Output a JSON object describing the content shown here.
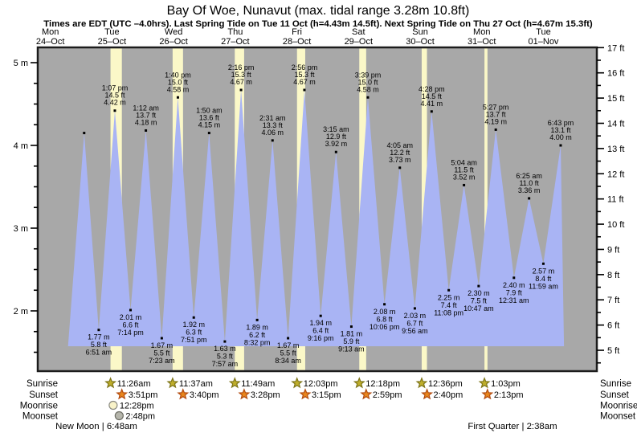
{
  "header": {
    "title": "Bay Of Woe, Nunavut (max. tidal range 3.28m 10.8ft)",
    "subtitle": "Times are EDT (UTC –4.0hrs). Last Spring Tide on Tue 11 Oct (h=4.43m 14.5ft). Next Spring Tide on Thu 27 Oct (h=4.67m 15.3ft)"
  },
  "days": [
    {
      "weekday": "Mon",
      "date": "24–Oct"
    },
    {
      "weekday": "Tue",
      "date": "25–Oct"
    },
    {
      "weekday": "Wed",
      "date": "26–Oct"
    },
    {
      "weekday": "Thu",
      "date": "27–Oct"
    },
    {
      "weekday": "Fri",
      "date": "28–Oct"
    },
    {
      "weekday": "Sat",
      "date": "29–Oct"
    },
    {
      "weekday": "Sun",
      "date": "30–Oct"
    },
    {
      "weekday": "Mon",
      "date": "31–Oct"
    },
    {
      "weekday": "Tue",
      "date": "01–Nov"
    }
  ],
  "chart_data": {
    "type": "area",
    "ylabel_left_unit": "m",
    "ylabel_right_unit": "ft",
    "y_axis_left": {
      "major_ticks_m": [
        2,
        3,
        4,
        5
      ],
      "minor_step_m": 0.25,
      "suffix": " m",
      "range_m": [
        1.5,
        5.17
      ]
    },
    "y_axis_right": {
      "major_ticks_ft": [
        5,
        6,
        7,
        8,
        9,
        10,
        11,
        12,
        13,
        14,
        15,
        16,
        17
      ],
      "minor_step_ft": 0.5,
      "suffix": " ft"
    },
    "curve_window": {
      "start_hour": 18.9,
      "end_hour": 212.0,
      "baseline_note": "blue fill clipped at ~1.57 m"
    },
    "tides": [
      {
        "day": 1,
        "kind": "high",
        "height_m": 4.15,
        "labeled": false,
        "time_est": "1:10 am"
      },
      {
        "day": 1,
        "kind": "low",
        "height_m": 1.77,
        "labeled": true,
        "label_m": "1.77 m",
        "label_ft": "5.8 ft",
        "label_time": "6:51 am"
      },
      {
        "day": 1,
        "kind": "high",
        "height_m": 4.42,
        "labeled": true,
        "label_m": "4.42 m",
        "label_ft": "14.5 ft",
        "label_time": "1:07 pm"
      },
      {
        "day": 1,
        "kind": "low",
        "height_m": 2.01,
        "labeled": true,
        "label_m": "2.01 m",
        "label_ft": "6.6 ft",
        "label_time": "7:14 pm"
      },
      {
        "day": 2,
        "kind": "high",
        "height_m": 4.18,
        "labeled": true,
        "label_m": "4.18 m",
        "label_ft": "13.7 ft",
        "label_time": "1:12 am"
      },
      {
        "day": 2,
        "kind": "low",
        "height_m": 1.67,
        "labeled": true,
        "label_m": "1.67 m",
        "label_ft": "5.5 ft",
        "label_time": "7:23 am"
      },
      {
        "day": 2,
        "kind": "high",
        "height_m": 4.58,
        "labeled": true,
        "label_m": "4.58 m",
        "label_ft": "15.0 ft",
        "label_time": "1:40 pm"
      },
      {
        "day": 2,
        "kind": "low",
        "height_m": 1.92,
        "labeled": true,
        "label_m": "1.92 m",
        "label_ft": "6.3 ft",
        "label_time": "7:51 pm"
      },
      {
        "day": 3,
        "kind": "high",
        "height_m": 4.15,
        "labeled": true,
        "label_m": "4.15 m",
        "label_ft": "13.6 ft",
        "label_time": "1:50 am"
      },
      {
        "day": 3,
        "kind": "low",
        "height_m": 1.63,
        "labeled": true,
        "label_m": "1.63 m",
        "label_ft": "5.3 ft",
        "label_time": "7:57 am"
      },
      {
        "day": 3,
        "kind": "high",
        "height_m": 4.67,
        "labeled": true,
        "label_m": "4.67 m",
        "label_ft": "15.3 ft",
        "label_time": "2:16 pm"
      },
      {
        "day": 3,
        "kind": "low",
        "height_m": 1.89,
        "labeled": true,
        "label_m": "1.89 m",
        "label_ft": "6.2 ft",
        "label_time": "8:32 pm"
      },
      {
        "day": 4,
        "kind": "high",
        "height_m": 4.06,
        "labeled": true,
        "label_m": "4.06 m",
        "label_ft": "13.3 ft",
        "label_time": "2:31 am"
      },
      {
        "day": 4,
        "kind": "low",
        "height_m": 1.67,
        "labeled": true,
        "label_m": "1.67 m",
        "label_ft": "5.5 ft",
        "label_time": "8:34 am"
      },
      {
        "day": 4,
        "kind": "high",
        "height_m": 4.67,
        "labeled": true,
        "label_m": "4.67 m",
        "label_ft": "15.3 ft",
        "label_time": "2:56 pm"
      },
      {
        "day": 4,
        "kind": "low",
        "height_m": 1.94,
        "labeled": true,
        "label_m": "1.94 m",
        "label_ft": "6.4 ft",
        "label_time": "9:16 pm"
      },
      {
        "day": 5,
        "kind": "high",
        "height_m": 3.92,
        "labeled": true,
        "label_m": "3.92 m",
        "label_ft": "12.9 ft",
        "label_time": "3:15 am"
      },
      {
        "day": 5,
        "kind": "low",
        "height_m": 1.81,
        "labeled": true,
        "label_m": "1.81 m",
        "label_ft": "5.9 ft",
        "label_time": "9:13 am"
      },
      {
        "day": 5,
        "kind": "high",
        "height_m": 4.58,
        "labeled": true,
        "label_m": "4.58 m",
        "label_ft": "15.0 ft",
        "label_time": "3:39 pm"
      },
      {
        "day": 5,
        "kind": "low",
        "height_m": 2.08,
        "labeled": true,
        "label_m": "2.08 m",
        "label_ft": "6.8 ft",
        "label_time": "10:06 pm"
      },
      {
        "day": 6,
        "kind": "high",
        "height_m": 3.73,
        "labeled": true,
        "label_m": "3.73 m",
        "label_ft": "12.2 ft",
        "label_time": "4:05 am"
      },
      {
        "day": 6,
        "kind": "low",
        "height_m": 2.03,
        "labeled": true,
        "label_m": "2.03 m",
        "label_ft": "6.7 ft",
        "label_time": "9:56 am"
      },
      {
        "day": 6,
        "kind": "high",
        "height_m": 4.41,
        "labeled": true,
        "label_m": "4.41 m",
        "label_ft": "14.5 ft",
        "label_time": "4:28 pm"
      },
      {
        "day": 6,
        "kind": "low",
        "height_m": 2.25,
        "labeled": true,
        "label_m": "2.25 m",
        "label_ft": "7.4 ft",
        "label_time": "11:08 pm"
      },
      {
        "day": 7,
        "kind": "high",
        "height_m": 3.52,
        "labeled": true,
        "label_m": "3.52 m",
        "label_ft": "11.5 ft",
        "label_time": "5:04 am"
      },
      {
        "day": 7,
        "kind": "low",
        "height_m": 2.3,
        "labeled": true,
        "label_m": "2.30 m",
        "label_ft": "7.5 ft",
        "label_time": "10:47 am"
      },
      {
        "day": 7,
        "kind": "high",
        "height_m": 4.19,
        "labeled": true,
        "label_m": "4.19 m",
        "label_ft": "13.7 ft",
        "label_time": "5:27 pm"
      },
      {
        "day": 8,
        "kind": "low",
        "height_m": 2.4,
        "labeled": true,
        "label_m": "2.40 m",
        "label_ft": "7.9 ft",
        "label_time": "12:31 am"
      },
      {
        "day": 8,
        "kind": "high",
        "height_m": 3.36,
        "labeled": true,
        "label_m": "3.36 m",
        "label_ft": "11.0 ft",
        "label_time": "6:25 am"
      },
      {
        "day": 8,
        "kind": "low",
        "height_m": 2.57,
        "labeled": true,
        "label_m": "2.57 m",
        "label_ft": "8.4 ft",
        "label_time": "11:59 am"
      },
      {
        "day": 8,
        "kind": "high",
        "height_m": 4.0,
        "labeled": true,
        "label_m": "4.00 m",
        "label_ft": "13.1 ft",
        "label_time": "6:43 pm"
      }
    ]
  },
  "almanac": {
    "row_labels": [
      "Sunrise",
      "Sunset",
      "Moonrise",
      "Moonset"
    ],
    "sunrise": [
      {
        "day": 1,
        "time": "11:26am"
      },
      {
        "day": 2,
        "time": "11:37am"
      },
      {
        "day": 3,
        "time": "11:49am"
      },
      {
        "day": 4,
        "time": "12:03pm"
      },
      {
        "day": 5,
        "time": "12:18pm"
      },
      {
        "day": 6,
        "time": "12:36pm"
      },
      {
        "day": 7,
        "time": "1:03pm"
      }
    ],
    "sunset": [
      {
        "day": 1,
        "time": "3:51pm"
      },
      {
        "day": 2,
        "time": "3:40pm"
      },
      {
        "day": 3,
        "time": "3:28pm"
      },
      {
        "day": 4,
        "time": "3:15pm"
      },
      {
        "day": 5,
        "time": "2:59pm"
      },
      {
        "day": 6,
        "time": "2:40pm"
      },
      {
        "day": 7,
        "time": "2:13pm"
      }
    ],
    "moonrise": [
      {
        "day": 1,
        "time": "12:28pm"
      }
    ],
    "moonset": [
      {
        "day": 1,
        "time": "2:48pm"
      }
    ],
    "new_moon": "New Moon | 6:48am",
    "first_quarter": "First Quarter | 2:38am"
  },
  "colors": {
    "plot_background": "#a8a8a8",
    "tide_fill": "#a9b4f4",
    "daylight_band": "#fbf8c8",
    "day_label_red": "#e8281f",
    "frame": "#1c1c1c",
    "sunrise_star_fill": "#bfae2b",
    "sunrise_star_stroke": "#7d7418",
    "sunset_star_fill": "#e8861c",
    "sunset_star_stroke": "#b1490e",
    "moonrise_circle_fill": "#f9f3c9",
    "moonrise_circle_stroke": "#8a8a82",
    "moonset_circle_fill": "#b5b5ab",
    "moonset_circle_stroke": "#6f6f66"
  }
}
